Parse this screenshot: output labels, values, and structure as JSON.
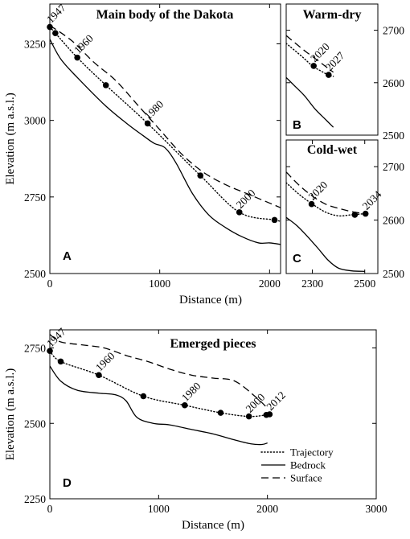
{
  "chart_data": [
    {
      "id": "A",
      "type": "line",
      "panel_letter": "A",
      "title": "Main body of the Dakota",
      "xlabel": "Distance (m)",
      "ylabel": "Elevation (m a.s.l.)",
      "xlim": [
        0,
        2100
      ],
      "ylim": [
        2500,
        3380
      ],
      "xticks": [
        0,
        1000,
        2000
      ],
      "xtick_labels": [
        "0",
        "1000",
        "2000"
      ],
      "yticks": [
        2500,
        2750,
        3000,
        3250
      ],
      "ytick_labels": [
        "2500",
        "2750",
        "3000",
        "3250"
      ],
      "y_axis_side": "left",
      "series": [
        {
          "key": "surface",
          "x": [
            0,
            200,
            400,
            600,
            800,
            1000,
            1200,
            1400,
            1600,
            1800,
            2000,
            2100
          ],
          "y": [
            3310,
            3260,
            3190,
            3130,
            3050,
            2970,
            2890,
            2830,
            2790,
            2760,
            2730,
            2715
          ]
        },
        {
          "key": "bedrock",
          "x": [
            0,
            100,
            250,
            500,
            700,
            850,
            950,
            1050,
            1150,
            1300,
            1450,
            1600,
            1750,
            1900,
            2000,
            2100
          ],
          "y": [
            3265,
            3200,
            3140,
            3050,
            2990,
            2950,
            2925,
            2910,
            2860,
            2760,
            2690,
            2650,
            2620,
            2600,
            2600,
            2595
          ]
        },
        {
          "key": "trajectory",
          "x": [
            0,
            50,
            250,
            510,
            890,
            1370,
            1725,
            2045,
            2100
          ],
          "y": [
            3305,
            3285,
            3205,
            3115,
            2990,
            2820,
            2700,
            2675,
            2670
          ]
        }
      ],
      "markers": [
        {
          "x": 0,
          "y": 3305,
          "label": "1947"
        },
        {
          "x": 50,
          "y": 3285,
          "label": ""
        },
        {
          "x": 250,
          "y": 3205,
          "label": "1960"
        },
        {
          "x": 510,
          "y": 3115,
          "label": ""
        },
        {
          "x": 890,
          "y": 2990,
          "label": "1980"
        },
        {
          "x": 1370,
          "y": 2820,
          "label": ""
        },
        {
          "x": 1725,
          "y": 2700,
          "label": "2000"
        },
        {
          "x": 2045,
          "y": 2675,
          "label": ""
        }
      ]
    },
    {
      "id": "B",
      "type": "line",
      "panel_letter": "B",
      "title": "Warm-dry",
      "xlabel": "",
      "ylabel": "",
      "xlim": [
        2200,
        2550
      ],
      "ylim": [
        2500,
        2750
      ],
      "xticks": [],
      "xtick_labels": [],
      "yticks": [
        2500,
        2600,
        2700
      ],
      "ytick_labels": [
        "2500",
        "2600",
        "2700"
      ],
      "y_axis_side": "right",
      "series": [
        {
          "key": "surface",
          "x": [
            2200,
            2260,
            2300,
            2340,
            2380
          ],
          "y": [
            2690,
            2665,
            2650,
            2635,
            2620
          ]
        },
        {
          "key": "trajectory",
          "x": [
            2200,
            2260,
            2300,
            2330,
            2360,
            2380
          ],
          "y": [
            2675,
            2650,
            2632,
            2623,
            2615,
            2612
          ]
        },
        {
          "key": "bedrock",
          "x": [
            2200,
            2230,
            2270,
            2310,
            2350,
            2380
          ],
          "y": [
            2610,
            2595,
            2575,
            2550,
            2530,
            2515
          ]
        }
      ],
      "markers": [
        {
          "x": 2305,
          "y": 2632,
          "label": "2020"
        },
        {
          "x": 2362,
          "y": 2615,
          "label": "2027"
        }
      ]
    },
    {
      "id": "C",
      "type": "line",
      "panel_letter": "C",
      "title": "Cold-wet",
      "xlabel": "",
      "ylabel": "",
      "xlim": [
        2200,
        2550
      ],
      "ylim": [
        2500,
        2750
      ],
      "xticks": [
        2300,
        2500
      ],
      "xtick_labels": [
        "2300",
        "2500"
      ],
      "yticks": [
        2500,
        2600,
        2700
      ],
      "ytick_labels": [
        "2500",
        "2600",
        "2700"
      ],
      "y_axis_side": "right",
      "series": [
        {
          "key": "surface",
          "x": [
            2200,
            2250,
            2300,
            2350,
            2400,
            2450,
            2500
          ],
          "y": [
            2690,
            2665,
            2645,
            2630,
            2622,
            2616,
            2612
          ]
        },
        {
          "key": "trajectory",
          "x": [
            2200,
            2250,
            2300,
            2350,
            2400,
            2450,
            2500
          ],
          "y": [
            2670,
            2648,
            2630,
            2615,
            2608,
            2610,
            2612
          ]
        },
        {
          "key": "bedrock",
          "x": [
            2200,
            2240,
            2280,
            2320,
            2360,
            2400,
            2450,
            2500
          ],
          "y": [
            2605,
            2590,
            2570,
            2548,
            2525,
            2510,
            2505,
            2504
          ]
        }
      ],
      "markers": [
        {
          "x": 2297,
          "y": 2630,
          "label": "2020"
        },
        {
          "x": 2462,
          "y": 2610,
          "label": ""
        },
        {
          "x": 2503,
          "y": 2612,
          "label": "2034"
        }
      ]
    },
    {
      "id": "D",
      "type": "line",
      "panel_letter": "D",
      "title": "Emerged pieces",
      "xlabel": "Distance (m)",
      "ylabel": "Elevation (m a.s.l.)",
      "xlim": [
        0,
        3000
      ],
      "ylim": [
        2250,
        2810
      ],
      "xticks": [
        0,
        1000,
        2000,
        3000
      ],
      "xtick_labels": [
        "0",
        "1000",
        "2000",
        "3000"
      ],
      "yticks": [
        2250,
        2500,
        2750
      ],
      "ytick_labels": [
        "2250",
        "2500",
        "2750"
      ],
      "y_axis_side": "left",
      "legend": {
        "position": "lower-right",
        "entries": [
          {
            "key": "trajectory",
            "label": "Trajectory"
          },
          {
            "key": "bedrock",
            "label": "Bedrock"
          },
          {
            "key": "surface",
            "label": "Surface"
          }
        ]
      },
      "series": [
        {
          "key": "surface",
          "x": [
            0,
            100,
            300,
            500,
            700,
            900,
            1100,
            1300,
            1500,
            1700,
            1900,
            2000
          ],
          "y": [
            2795,
            2770,
            2760,
            2750,
            2725,
            2705,
            2680,
            2660,
            2650,
            2640,
            2585,
            2550
          ]
        },
        {
          "key": "bedrock",
          "x": [
            0,
            100,
            250,
            450,
            600,
            700,
            800,
            950,
            1100,
            1300,
            1500,
            1700,
            1850,
            1950,
            2000
          ],
          "y": [
            2690,
            2640,
            2610,
            2600,
            2595,
            2575,
            2520,
            2500,
            2495,
            2480,
            2465,
            2445,
            2432,
            2430,
            2435
          ]
        },
        {
          "key": "trajectory",
          "x": [
            0,
            100,
            450,
            860,
            1240,
            1570,
            1830,
            1990,
            2020
          ],
          "y": [
            2740,
            2705,
            2660,
            2590,
            2560,
            2535,
            2523,
            2528,
            2530
          ]
        }
      ],
      "markers": [
        {
          "x": 0,
          "y": 2740,
          "label": "1947"
        },
        {
          "x": 100,
          "y": 2705,
          "label": ""
        },
        {
          "x": 450,
          "y": 2660,
          "label": "1960"
        },
        {
          "x": 860,
          "y": 2590,
          "label": ""
        },
        {
          "x": 1240,
          "y": 2560,
          "label": "1980"
        },
        {
          "x": 1570,
          "y": 2535,
          "label": ""
        },
        {
          "x": 1830,
          "y": 2523,
          "label": "2000"
        },
        {
          "x": 1990,
          "y": 2528,
          "label": ""
        },
        {
          "x": 2020,
          "y": 2530,
          "label": "2012"
        }
      ]
    }
  ]
}
